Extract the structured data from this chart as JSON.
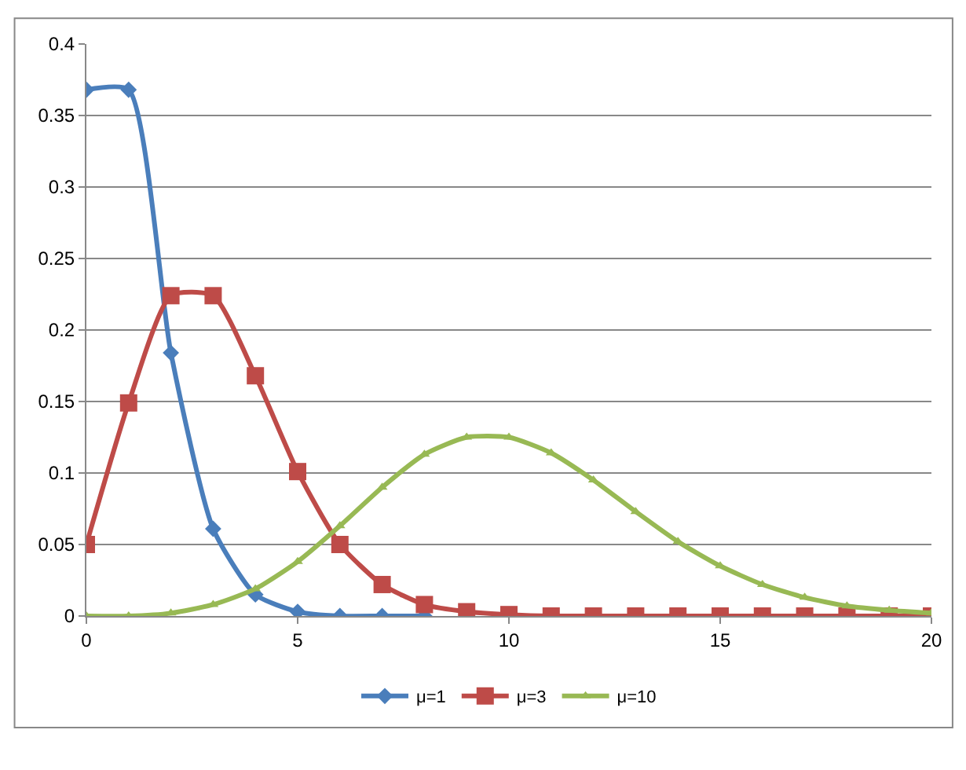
{
  "chart_data": {
    "type": "line",
    "x": [
      0,
      1,
      2,
      3,
      4,
      5,
      6,
      7,
      8,
      9,
      10,
      11,
      12,
      13,
      14,
      15,
      16,
      17,
      18,
      19,
      20
    ],
    "series": [
      {
        "name": "μ=1",
        "color": "#4a7ebb",
        "marker": "diamond",
        "values": [
          0.368,
          0.368,
          0.184,
          0.061,
          0.015,
          0.003,
          0.0,
          0.0,
          0.0,
          null,
          null,
          null,
          null,
          null,
          null,
          null,
          null,
          null,
          null,
          null,
          null
        ]
      },
      {
        "name": "μ=3",
        "color": "#be4b48",
        "marker": "square",
        "values": [
          0.05,
          0.149,
          0.224,
          0.224,
          0.168,
          0.101,
          0.05,
          0.022,
          0.008,
          0.003,
          0.001,
          0.0,
          0.0,
          0.0,
          0.0,
          0.0,
          0.0,
          0.0,
          0.0,
          0.0,
          0.0
        ]
      },
      {
        "name": "μ=10",
        "color": "#98b954",
        "marker": "triangle",
        "values": [
          0.0,
          0.0,
          0.002,
          0.008,
          0.019,
          0.038,
          0.063,
          0.09,
          0.113,
          0.125,
          0.125,
          0.114,
          0.095,
          0.073,
          0.052,
          0.035,
          0.022,
          0.013,
          0.007,
          0.004,
          0.002
        ]
      }
    ],
    "xlim": [
      0,
      20
    ],
    "xticks": [
      0,
      5,
      10,
      15,
      20
    ],
    "ylim": [
      0,
      0.4
    ],
    "yticks": [
      0,
      0.05,
      0.1,
      0.15,
      0.2,
      0.25,
      0.3,
      0.35,
      0.4
    ],
    "grid": "y",
    "legend": "bottom",
    "line_style": "solid"
  }
}
